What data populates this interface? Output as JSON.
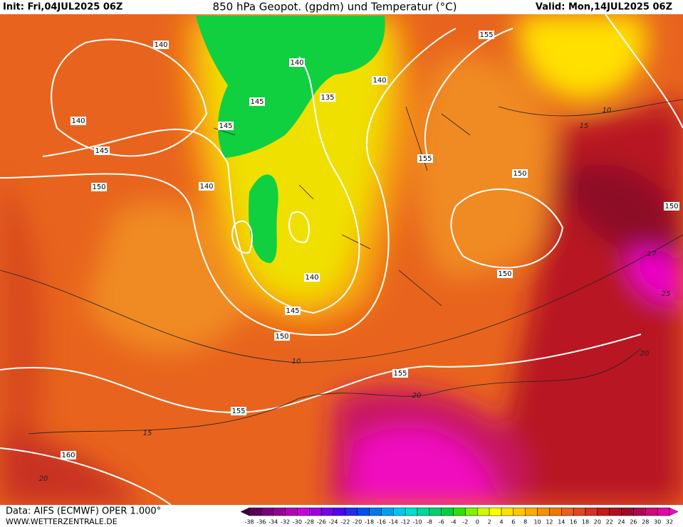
{
  "header": {
    "init": "Init: Fri,04JUL2025 06Z",
    "title": "850 hPa Geopot. (gpdm) und Temperatur (°C)",
    "valid": "Valid: Mon,14JUL2025 06Z"
  },
  "footer": {
    "source": "Data: AIFS (ECMWF) OPER 1.000°",
    "website": "WWW.WETTERZENTRALE.DE"
  },
  "scale": {
    "labels": [
      -38,
      -36,
      -34,
      -32,
      -30,
      -28,
      -26,
      -24,
      -22,
      -20,
      -18,
      -16,
      -14,
      -12,
      -10,
      -8,
      -6,
      -4,
      -2,
      0,
      2,
      4,
      6,
      8,
      10,
      12,
      14,
      16,
      18,
      20,
      22,
      24,
      26,
      28,
      30,
      32
    ],
    "colors": [
      "#3c0040",
      "#5a005a",
      "#78007a",
      "#96009a",
      "#b400b8",
      "#c800d8",
      "#a000e0",
      "#7800e8",
      "#5000f0",
      "#2828f0",
      "#0050f0",
      "#0078f0",
      "#00a0f0",
      "#00c8f0",
      "#00e0d0",
      "#00d8a0",
      "#00d070",
      "#00d040",
      "#30e000",
      "#80f000",
      "#d0f800",
      "#ffff00",
      "#ffe000",
      "#ffc800",
      "#ffaa00",
      "#f89000",
      "#f07800",
      "#e86020",
      "#e04820",
      "#d83020",
      "#c81818",
      "#b01020",
      "#a00828",
      "#b00850",
      "#d00878",
      "#e800a8",
      "#ff00d0"
    ]
  },
  "contour_labels": [
    140,
    140,
    140,
    140,
    145,
    135,
    145,
    145,
    150,
    140,
    155,
    155,
    150,
    150,
    140,
    145,
    150,
    155,
    155,
    160,
    150,
    10,
    15,
    10,
    15,
    20,
    20,
    25,
    20,
    17
  ]
}
